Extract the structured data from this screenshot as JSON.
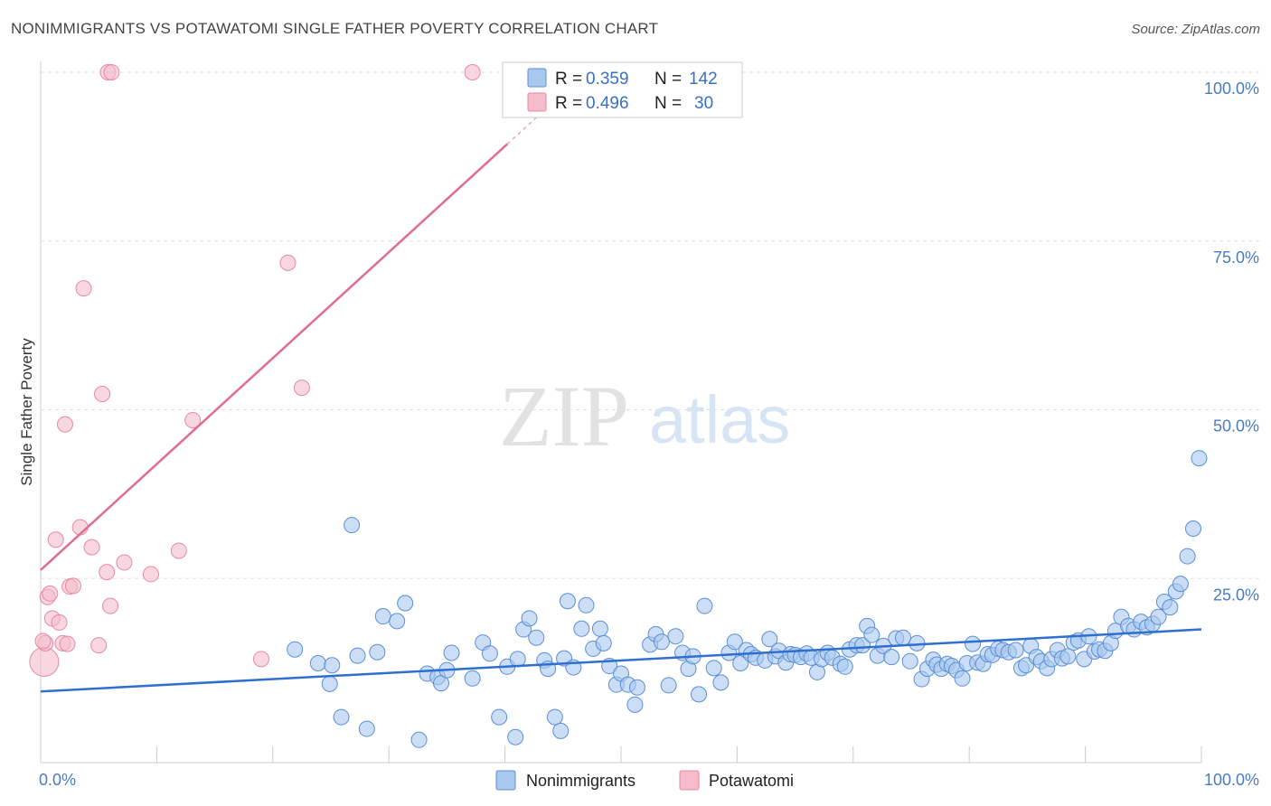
{
  "header": {
    "title": "NONIMMIGRANTS VS POTAWATOMI SINGLE FATHER POVERTY CORRELATION CHART",
    "source": "Source: ZipAtlas.com"
  },
  "watermark": {
    "zip": "ZIP",
    "atlas": "atlas"
  },
  "colors": {
    "blue_fill": "#a9c8ee",
    "blue_stroke": "#5b8fd6",
    "blue_line": "#2e6fd0",
    "pink_fill": "#f5bccb",
    "pink_stroke": "#e889a3",
    "pink_line": "#e06b93",
    "grid": "#dddddd",
    "tick_label": "#4a7cc2"
  },
  "legend": {
    "rows": [
      {
        "r_label": "R =",
        "r_value": "0.359",
        "n_label": "N =",
        "n_value": "142"
      },
      {
        "r_label": "R =",
        "r_value": "0.496",
        "n_label": "N =",
        "n_value": "30"
      }
    ]
  },
  "chart_data": {
    "type": "scatter",
    "title": "NONIMMIGRANTS VS POTAWATOMI SINGLE FATHER POVERTY CORRELATION CHART",
    "xlabel": "",
    "ylabel": "Single Father Poverty",
    "xlim": [
      0,
      100
    ],
    "ylim": [
      0,
      100
    ],
    "x_tick_labels": [
      "0.0%",
      "100.0%"
    ],
    "y_ticks": [
      25,
      50,
      75,
      100
    ],
    "y_tick_labels": [
      "25.0%",
      "50.0%",
      "75.0%",
      "100.0%"
    ],
    "grid": true,
    "legend_position": "bottom",
    "series": [
      {
        "name": "Nonimmigrants",
        "color": "#a9c8ee",
        "trend": {
          "x": [
            0,
            100
          ],
          "y": [
            10.3,
            19.3
          ]
        },
        "points": [
          [
            21.9,
            16.4
          ],
          [
            23.9,
            14.4
          ],
          [
            24.9,
            11.4
          ],
          [
            25.9,
            6.6
          ],
          [
            25.1,
            14.1
          ],
          [
            26.8,
            34.4
          ],
          [
            27.3,
            15.5
          ],
          [
            28.1,
            4.9
          ],
          [
            29.0,
            16.0
          ],
          [
            29.5,
            21.2
          ],
          [
            30.7,
            20.5
          ],
          [
            31.4,
            23.1
          ],
          [
            32.6,
            3.3
          ],
          [
            33.3,
            12.9
          ],
          [
            34.2,
            12.4
          ],
          [
            34.5,
            11.5
          ],
          [
            35.0,
            13.4
          ],
          [
            35.4,
            15.9
          ],
          [
            37.2,
            12.2
          ],
          [
            38.1,
            17.4
          ],
          [
            38.7,
            15.8
          ],
          [
            39.5,
            6.6
          ],
          [
            40.2,
            13.9
          ],
          [
            40.9,
            3.7
          ],
          [
            41.1,
            15.0
          ],
          [
            41.6,
            19.3
          ],
          [
            42.1,
            20.9
          ],
          [
            42.7,
            18.1
          ],
          [
            43.4,
            14.8
          ],
          [
            43.7,
            13.6
          ],
          [
            44.3,
            6.6
          ],
          [
            44.8,
            4.6
          ],
          [
            45.1,
            15.1
          ],
          [
            45.4,
            23.4
          ],
          [
            45.9,
            13.8
          ],
          [
            46.6,
            19.4
          ],
          [
            47.0,
            22.8
          ],
          [
            47.6,
            16.5
          ],
          [
            48.2,
            19.4
          ],
          [
            48.5,
            17.3
          ],
          [
            49.0,
            14.0
          ],
          [
            49.6,
            11.3
          ],
          [
            50.0,
            12.9
          ],
          [
            50.6,
            11.3
          ],
          [
            51.2,
            8.4
          ],
          [
            51.4,
            10.9
          ],
          [
            52.5,
            17.1
          ],
          [
            53.0,
            18.6
          ],
          [
            53.5,
            17.5
          ],
          [
            54.1,
            11.2
          ],
          [
            54.7,
            18.3
          ],
          [
            55.3,
            15.9
          ],
          [
            55.8,
            13.6
          ],
          [
            56.2,
            15.4
          ],
          [
            56.7,
            9.9
          ],
          [
            57.2,
            22.7
          ],
          [
            58.0,
            13.7
          ],
          [
            58.6,
            11.6
          ],
          [
            59.3,
            15.9
          ],
          [
            59.8,
            17.5
          ],
          [
            60.3,
            14.4
          ],
          [
            60.8,
            16.3
          ],
          [
            61.2,
            15.7
          ],
          [
            61.6,
            15.2
          ],
          [
            62.4,
            14.8
          ],
          [
            62.8,
            17.9
          ],
          [
            63.3,
            15.4
          ],
          [
            63.6,
            16.2
          ],
          [
            64.2,
            14.5
          ],
          [
            64.6,
            15.7
          ],
          [
            65.0,
            15.6
          ],
          [
            65.5,
            15.3
          ],
          [
            66.0,
            15.8
          ],
          [
            66.4,
            15.2
          ],
          [
            66.9,
            13.1
          ],
          [
            67.3,
            15.0
          ],
          [
            67.8,
            15.9
          ],
          [
            68.2,
            15.2
          ],
          [
            68.9,
            14.3
          ],
          [
            69.3,
            13.9
          ],
          [
            69.7,
            16.4
          ],
          [
            70.3,
            17.0
          ],
          [
            70.8,
            17.0
          ],
          [
            71.2,
            19.8
          ],
          [
            71.6,
            18.5
          ],
          [
            72.1,
            15.5
          ],
          [
            72.6,
            16.9
          ],
          [
            73.3,
            15.3
          ],
          [
            73.7,
            18.0
          ],
          [
            74.3,
            18.1
          ],
          [
            74.9,
            14.7
          ],
          [
            75.5,
            17.3
          ],
          [
            75.9,
            12.1
          ],
          [
            76.4,
            13.6
          ],
          [
            76.9,
            14.9
          ],
          [
            77.2,
            14.2
          ],
          [
            77.6,
            13.6
          ],
          [
            78.1,
            14.3
          ],
          [
            78.5,
            14.0
          ],
          [
            78.9,
            13.4
          ],
          [
            79.4,
            12.2
          ],
          [
            79.8,
            14.4
          ],
          [
            80.3,
            17.2
          ],
          [
            80.7,
            14.5
          ],
          [
            81.2,
            14.3
          ],
          [
            81.6,
            15.7
          ],
          [
            82.0,
            15.6
          ],
          [
            82.5,
            16.5
          ],
          [
            82.9,
            16.3
          ],
          [
            83.4,
            16.0
          ],
          [
            84.0,
            16.3
          ],
          [
            84.5,
            13.7
          ],
          [
            84.9,
            14.1
          ],
          [
            85.3,
            16.9
          ],
          [
            85.8,
            15.3
          ],
          [
            86.2,
            14.7
          ],
          [
            86.7,
            13.7
          ],
          [
            87.1,
            15.0
          ],
          [
            87.6,
            16.3
          ],
          [
            88.0,
            15.1
          ],
          [
            88.5,
            15.4
          ],
          [
            89.0,
            17.4
          ],
          [
            89.4,
            17.7
          ],
          [
            89.9,
            15.0
          ],
          [
            90.3,
            18.3
          ],
          [
            90.8,
            16.1
          ],
          [
            91.2,
            16.4
          ],
          [
            91.7,
            16.2
          ],
          [
            92.2,
            17.3
          ],
          [
            92.6,
            19.1
          ],
          [
            93.1,
            21.1
          ],
          [
            93.7,
            19.8
          ],
          [
            94.2,
            19.3
          ],
          [
            94.8,
            20.4
          ],
          [
            95.3,
            19.6
          ],
          [
            95.8,
            20.1
          ],
          [
            96.3,
            21.1
          ],
          [
            96.8,
            23.3
          ],
          [
            97.3,
            22.5
          ],
          [
            97.8,
            24.8
          ],
          [
            98.2,
            25.9
          ],
          [
            98.8,
            29.9
          ],
          [
            99.3,
            33.9
          ],
          [
            99.8,
            44.1
          ]
        ]
      },
      {
        "name": "Potawatomi",
        "color": "#f5bccb",
        "trend": {
          "x": [
            0,
            40.2
          ],
          "y": [
            27.9,
            89.6
          ]
        },
        "points": [
          [
            0.3,
            14.6
          ],
          [
            0.4,
            17.3
          ],
          [
            0.6,
            24.0
          ],
          [
            0.8,
            24.5
          ],
          [
            1.0,
            20.9
          ],
          [
            1.3,
            32.3
          ],
          [
            1.6,
            20.3
          ],
          [
            1.9,
            17.3
          ],
          [
            2.1,
            49.0
          ],
          [
            2.3,
            17.2
          ],
          [
            2.5,
            25.5
          ],
          [
            2.8,
            25.6
          ],
          [
            3.4,
            34.1
          ],
          [
            3.7,
            68.7
          ],
          [
            4.4,
            31.2
          ],
          [
            5.0,
            17.0
          ],
          [
            5.7,
            27.6
          ],
          [
            5.8,
            100.0
          ],
          [
            6.1,
            100.0
          ],
          [
            5.3,
            53.4
          ],
          [
            6.0,
            22.7
          ],
          [
            7.2,
            29.0
          ],
          [
            9.5,
            27.3
          ],
          [
            11.9,
            30.7
          ],
          [
            13.1,
            49.6
          ],
          [
            19.0,
            15.0
          ],
          [
            21.3,
            72.4
          ],
          [
            22.5,
            54.3
          ],
          [
            37.2,
            100.0
          ],
          [
            0.2,
            17.6
          ]
        ]
      }
    ]
  },
  "bottom_legend": {
    "items": [
      {
        "label": "Nonimmigrants"
      },
      {
        "label": "Potawatomi"
      }
    ]
  }
}
